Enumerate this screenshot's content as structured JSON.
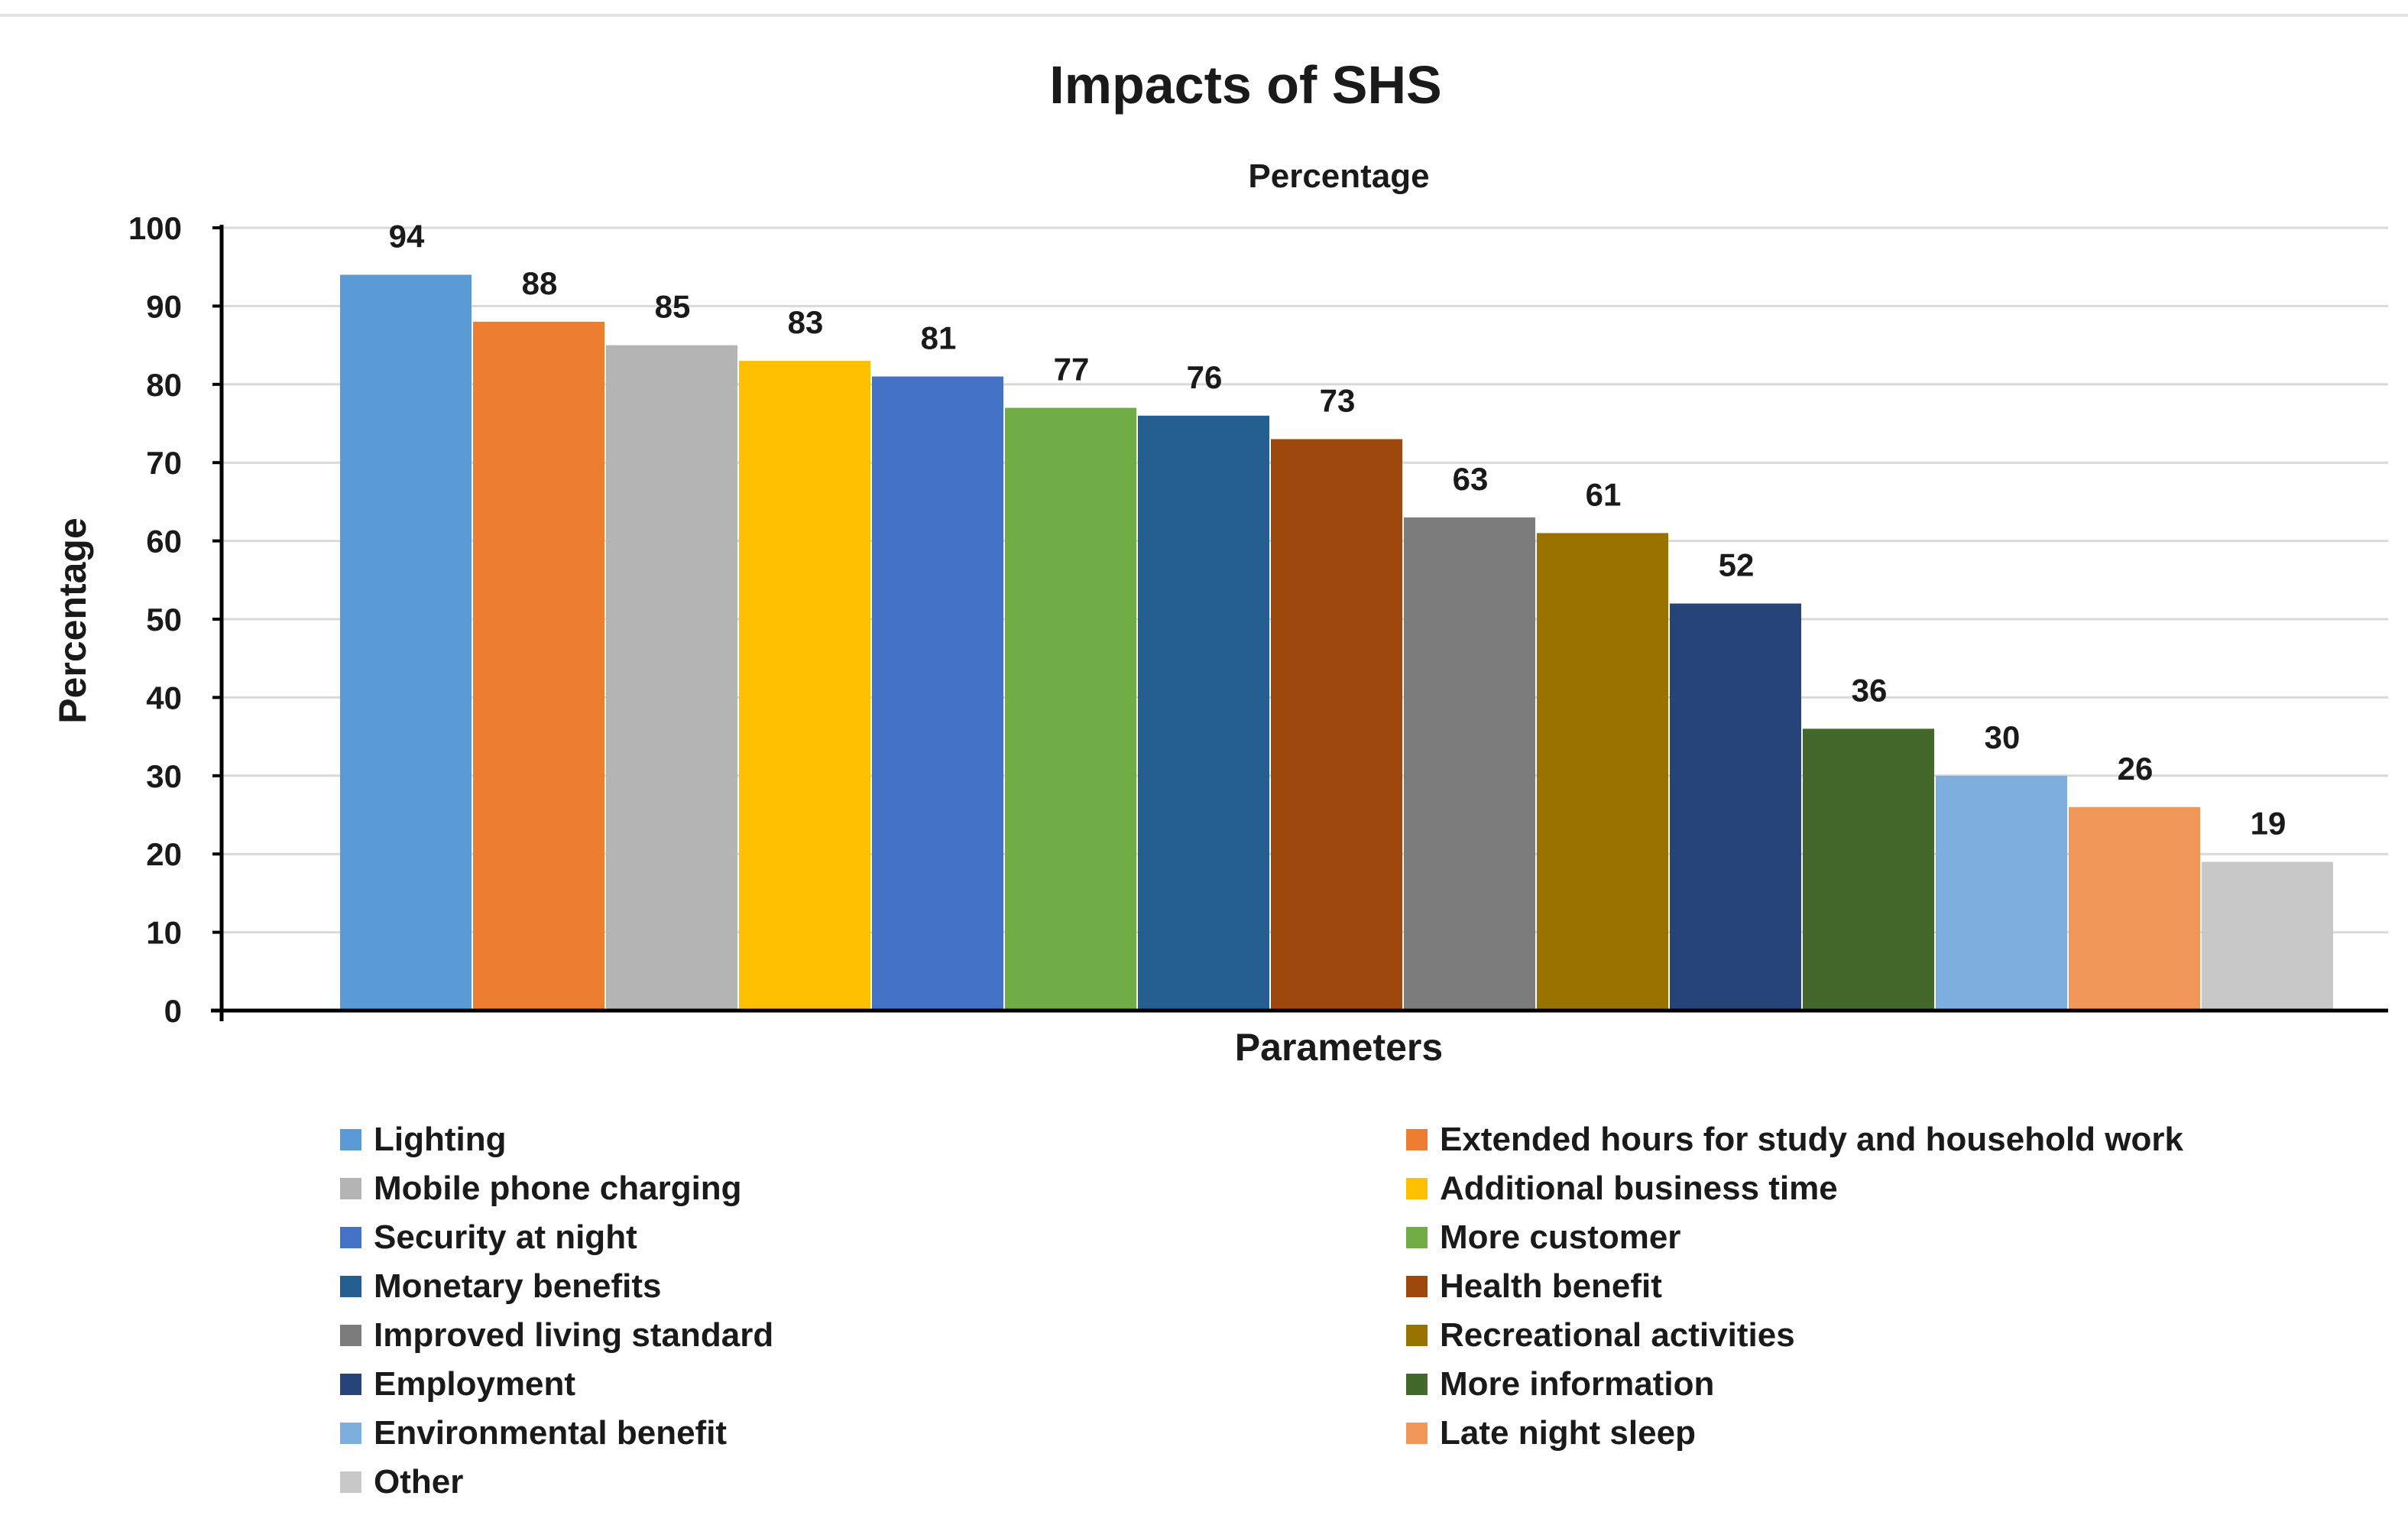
{
  "chart_data": {
    "type": "bar",
    "title": "Impacts of SHS",
    "subtitle": "Percentage",
    "xlabel": "Parameters",
    "ylabel": "Percentage",
    "ylim": [
      0,
      100
    ],
    "yticks": [
      0,
      10,
      20,
      30,
      40,
      50,
      60,
      70,
      80,
      90,
      100
    ],
    "grid": true,
    "legend_position": "bottom",
    "categories": [
      "Lighting",
      "Extended hours for study and household work",
      "Mobile phone charging",
      "Additional business time",
      "Security at night",
      "More customer",
      "Monetary benefits",
      "Health benefit",
      "Improved living standard",
      "Recreational activities",
      "Employment",
      "More information",
      "Environmental benefit",
      "Late night sleep",
      "Other"
    ],
    "values": [
      94,
      88,
      85,
      83,
      81,
      77,
      76,
      73,
      63,
      61,
      52,
      36,
      30,
      26,
      19
    ],
    "colors": [
      "#5b9bd5",
      "#ed7d31",
      "#b4b4b4",
      "#ffc000",
      "#4472c4",
      "#70ad47",
      "#255e91",
      "#9e480e",
      "#7c7c7c",
      "#997300",
      "#264478",
      "#43682b",
      "#7cafdd",
      "#f1975a",
      "#c8c8c8"
    ]
  }
}
